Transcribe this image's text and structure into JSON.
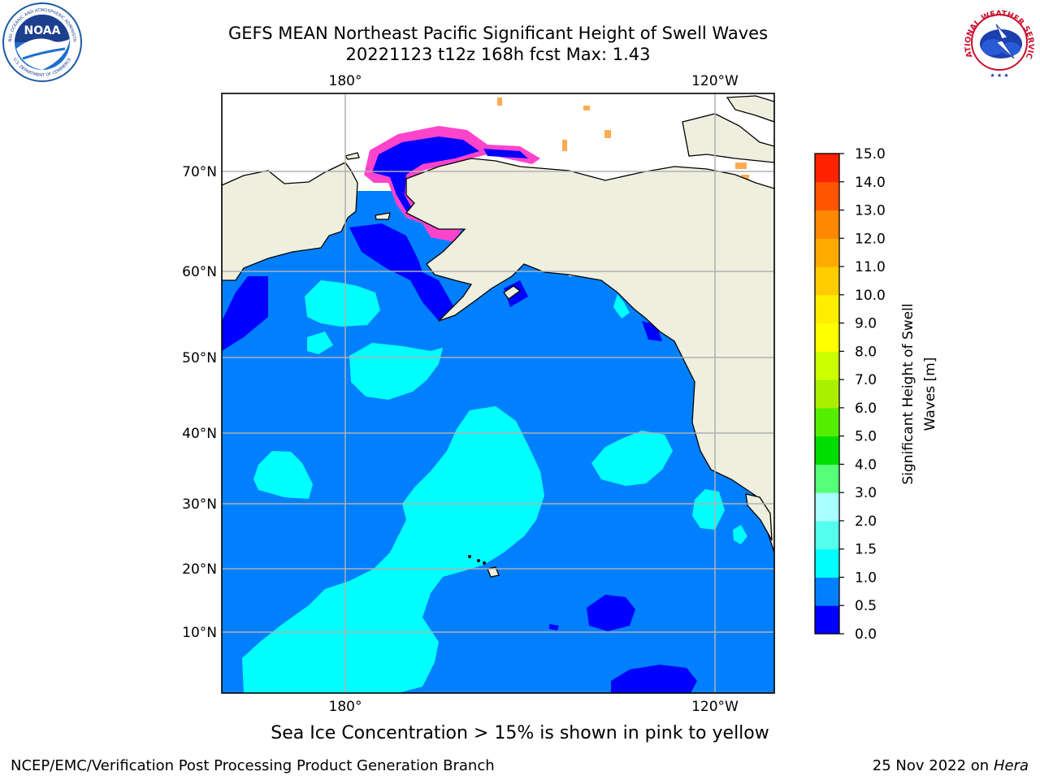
{
  "title": {
    "line1": "GEFS MEAN Northeast Pacific Significant Height of Swell Waves",
    "line2": "20221123 t12z 168h fcst   Max: 1.43"
  },
  "logos": {
    "left": "NOAA",
    "left_ring_top": "NATIONAL OCEANIC AND ATMOSPHERIC ADMINISTRATION",
    "left_ring_bottom": "U.S. DEPARTMENT OF COMMERCE",
    "right_ring": "NATIONAL WEATHER SERVICE"
  },
  "map": {
    "top_lon_labels": [
      "180°",
      "120°W"
    ],
    "bottom_lon_labels": [
      "180°",
      "120°W"
    ],
    "lat_labels": [
      "70°N",
      "60°N",
      "50°N",
      "40°N",
      "30°N",
      "20°N",
      "10°N"
    ],
    "ocean_color": "#0080ff",
    "land_color": "#efefdf"
  },
  "colorbar": {
    "label_line1": "Significant Height of Swell",
    "label_line2": "Waves [m]",
    "ticks": [
      "0.0",
      "0.5",
      "1.0",
      "1.5",
      "2.0",
      "3.0",
      "4.0",
      "5.0",
      "6.0",
      "7.0",
      "8.0",
      "9.0",
      "10.0",
      "11.0",
      "12.0",
      "13.0",
      "14.0",
      "15.0"
    ],
    "colors": [
      "#0000ff",
      "#0080ff",
      "#00ffff",
      "#55ffee",
      "#aaffff",
      "#55ff77",
      "#00dd00",
      "#55ee00",
      "#aaee00",
      "#ccff00",
      "#ffff00",
      "#ffee00",
      "#ffcc00",
      "#ffaa00",
      "#ff8800",
      "#ff5500",
      "#ff2200"
    ]
  },
  "note": "Sea Ice Concentration > 15% is shown in pink to yellow",
  "footer": {
    "left": "NCEP/EMC/Verification Post Processing Product Generation Branch",
    "right_date": "25 Nov 2022 on",
    "right_machine": "Hera"
  }
}
